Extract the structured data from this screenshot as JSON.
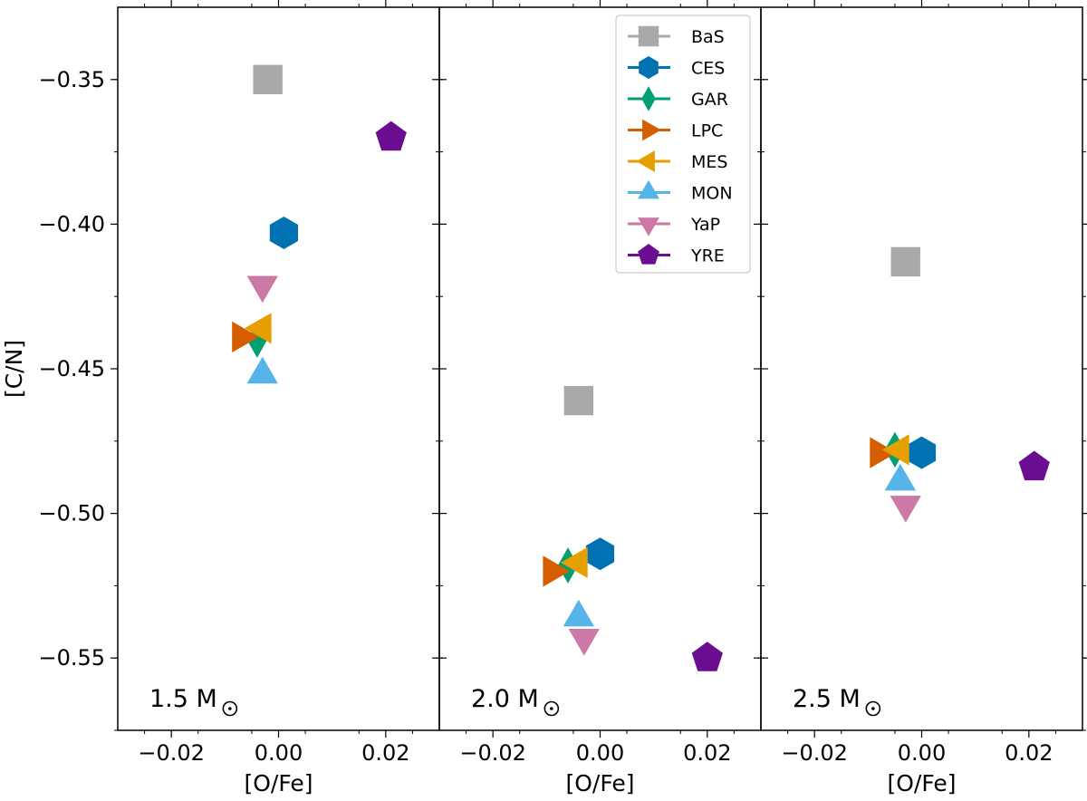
{
  "chart_data": {
    "type": "scatter",
    "xlabel": "[O/Fe]",
    "ylabel": "[C/N]",
    "xlim": [
      -0.03,
      0.03
    ],
    "ylim": [
      -0.575,
      -0.325
    ],
    "x_ticks": [
      -0.02,
      0.0,
      0.02
    ],
    "x_tick_labels": [
      "−0.02",
      "0.00",
      "0.02"
    ],
    "y_ticks": [
      -0.35,
      -0.4,
      -0.45,
      -0.5,
      -0.55
    ],
    "y_tick_labels": [
      "−0.35",
      "−0.40",
      "−0.45",
      "−0.50",
      "−0.55"
    ],
    "legend_position": "top-right of middle panel",
    "grid": false,
    "series": [
      {
        "name": "BaS",
        "color": "#a9a9a9",
        "marker": "square"
      },
      {
        "name": "CES",
        "color": "#0072b2",
        "marker": "hexagon"
      },
      {
        "name": "GAR",
        "color": "#009e73",
        "marker": "diamond"
      },
      {
        "name": "LPC",
        "color": "#d55e00",
        "marker": "triangle-right"
      },
      {
        "name": "MES",
        "color": "#e69f00",
        "marker": "triangle-left"
      },
      {
        "name": "MON",
        "color": "#56b4e9",
        "marker": "triangle-up"
      },
      {
        "name": "YaP",
        "color": "#cc79a7",
        "marker": "triangle-down"
      },
      {
        "name": "YRE",
        "color": "#6a0d91",
        "marker": "pentagon"
      }
    ],
    "panels": [
      {
        "label": "1.5 M",
        "points": [
          {
            "series": "BaS",
            "x": -0.002,
            "y": -0.35
          },
          {
            "series": "CES",
            "x": 0.001,
            "y": -0.403
          },
          {
            "series": "GAR",
            "x": -0.004,
            "y": -0.44
          },
          {
            "series": "LPC",
            "x": -0.007,
            "y": -0.439
          },
          {
            "series": "MES",
            "x": -0.003,
            "y": -0.436
          },
          {
            "series": "MON",
            "x": -0.003,
            "y": -0.452
          },
          {
            "series": "YaP",
            "x": -0.003,
            "y": -0.421
          },
          {
            "series": "YRE",
            "x": 0.021,
            "y": -0.37
          }
        ]
      },
      {
        "label": "2.0 M",
        "points": [
          {
            "series": "BaS",
            "x": -0.004,
            "y": -0.461
          },
          {
            "series": "CES",
            "x": 0.0,
            "y": -0.514
          },
          {
            "series": "GAR",
            "x": -0.006,
            "y": -0.518
          },
          {
            "series": "LPC",
            "x": -0.009,
            "y": -0.52
          },
          {
            "series": "MES",
            "x": -0.004,
            "y": -0.517
          },
          {
            "series": "MON",
            "x": -0.004,
            "y": -0.536
          },
          {
            "series": "YaP",
            "x": -0.003,
            "y": -0.543
          },
          {
            "series": "YRE",
            "x": 0.02,
            "y": -0.55
          }
        ]
      },
      {
        "label": "2.5 M",
        "points": [
          {
            "series": "BaS",
            "x": -0.003,
            "y": -0.413
          },
          {
            "series": "CES",
            "x": 0.0,
            "y": -0.479
          },
          {
            "series": "GAR",
            "x": -0.005,
            "y": -0.478
          },
          {
            "series": "LPC",
            "x": -0.008,
            "y": -0.479
          },
          {
            "series": "MES",
            "x": -0.004,
            "y": -0.478
          },
          {
            "series": "MON",
            "x": -0.004,
            "y": -0.489
          },
          {
            "series": "YaP",
            "x": -0.003,
            "y": -0.497
          },
          {
            "series": "YRE",
            "x": 0.021,
            "y": -0.484
          }
        ]
      }
    ]
  }
}
